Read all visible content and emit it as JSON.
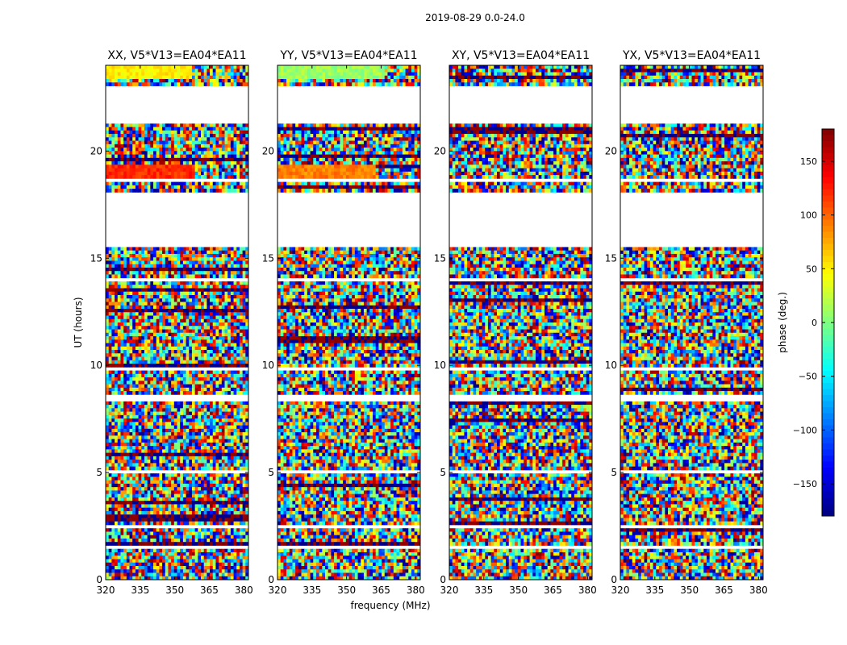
{
  "chart_data": {
    "type": "heatmap",
    "suptitle": "2019-08-29 0.0-24.0",
    "xlabel": "frequency (MHz)",
    "ylabel": "UT (hours)",
    "xlim": [
      320,
      382
    ],
    "ylim": [
      0,
      24
    ],
    "xticks": [
      320,
      335,
      350,
      365,
      380
    ],
    "yticks": [
      0,
      5,
      10,
      15,
      20
    ],
    "panels": [
      {
        "title": "XX, V5*V13=EA04*EA11"
      },
      {
        "title": "YY, V5*V13=EA04*EA11"
      },
      {
        "title": "XY, V5*V13=EA04*EA11"
      },
      {
        "title": "YX, V5*V13=EA04*EA11"
      }
    ],
    "colorbar": {
      "label": "phase (deg.)",
      "range": [
        -180,
        180
      ],
      "ticks": [
        -150,
        -100,
        -50,
        0,
        50,
        100,
        150
      ],
      "colormap": "jet"
    },
    "blank_ut_ranges": [
      [
        0.45,
        0.55
      ],
      [
        1.45,
        1.6
      ],
      [
        2.2,
        2.3
      ],
      [
        2.4,
        2.5
      ],
      [
        4.9,
        5.1
      ],
      [
        7.0,
        7.1
      ],
      [
        8.4,
        8.6
      ],
      [
        9.8,
        9.95
      ],
      [
        13.95,
        14.05
      ],
      [
        15.5,
        18.0
      ],
      [
        18.5,
        18.7
      ],
      [
        21.3,
        23.0
      ]
    ],
    "coherent_features": [
      {
        "panel": "XX",
        "ut_range": [
          18.8,
          19.3
        ],
        "freq_range": [
          320,
          359
        ],
        "phase_deg": 120
      },
      {
        "panel": "YY",
        "ut_range": [
          18.8,
          19.3
        ],
        "freq_range": [
          320,
          363
        ],
        "phase_deg": 90
      },
      {
        "panel": "XX",
        "ut_range": [
          23.3,
          24.0
        ],
        "freq_range": [
          320,
          358
        ],
        "phase_deg": 50
      },
      {
        "panel": "YY",
        "ut_range": [
          23.3,
          24.0
        ],
        "freq_range": [
          320,
          366
        ],
        "phase_deg": 10
      }
    ]
  }
}
